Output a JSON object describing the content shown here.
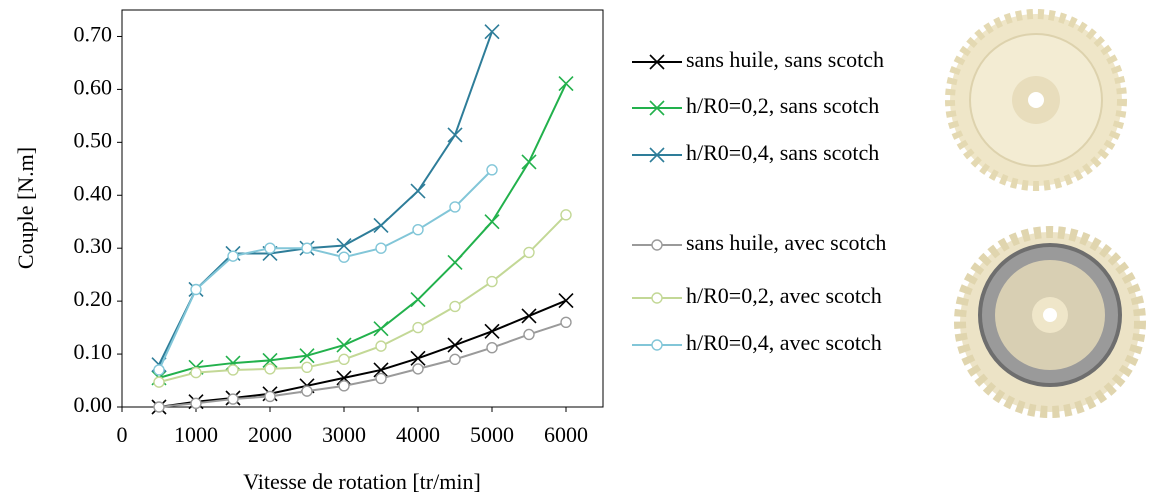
{
  "chart_data": {
    "type": "line",
    "x_label": "Vitesse de rotation [tr/min]",
    "y_label": "Couple [N.m]",
    "x": [
      500,
      1000,
      1500,
      2000,
      2500,
      3000,
      3500,
      4000,
      4500,
      5000,
      5500,
      6000
    ],
    "xlim": [
      0,
      6500
    ],
    "xticks": [
      0,
      1000,
      2000,
      3000,
      4000,
      5000,
      6000
    ],
    "ylim": [
      0,
      0.75
    ],
    "yticks": [
      {
        "value": 0,
        "label": "0.00"
      },
      {
        "value": 0.1,
        "label": "0.10"
      },
      {
        "value": 0.2,
        "label": "0.20"
      },
      {
        "value": 0.3,
        "label": "0.30"
      },
      {
        "value": 0.4,
        "label": "0.40"
      },
      {
        "value": 0.5,
        "label": "0.50"
      },
      {
        "value": 0.6,
        "label": "0.60"
      },
      {
        "value": 0.7,
        "label": "0.70"
      }
    ],
    "grid": false,
    "series": [
      {
        "name": "sans huile, sans scotch",
        "color": "#000000",
        "marker": "x",
        "values": [
          0.0,
          0.01,
          0.017,
          0.025,
          0.04,
          0.055,
          0.07,
          0.092,
          0.117,
          0.143,
          0.172,
          0.201
        ]
      },
      {
        "name": "h/R0=0,2, sans scotch",
        "color": "#22b14c",
        "marker": "x",
        "values": [
          0.055,
          0.075,
          0.083,
          0.088,
          0.097,
          0.117,
          0.148,
          0.203,
          0.273,
          0.35,
          0.463,
          0.611
        ]
      },
      {
        "name": "h/R0=0,4, sans scotch",
        "color": "#2e7d99",
        "marker": "x",
        "values": [
          0.08,
          0.222,
          0.29,
          0.29,
          0.3,
          0.305,
          0.343,
          0.408,
          0.514,
          0.709,
          null,
          null
        ]
      },
      {
        "name": "sans huile, avec scotch",
        "color": "#9a9a9a",
        "marker": "o",
        "values": [
          0.0,
          0.007,
          0.015,
          0.02,
          0.03,
          0.04,
          0.054,
          0.072,
          0.09,
          0.112,
          0.137,
          0.16
        ]
      },
      {
        "name": "h/R0=0,2, avec scotch",
        "color": "#c3d896",
        "marker": "o",
        "values": [
          0.047,
          0.065,
          0.07,
          0.072,
          0.075,
          0.09,
          0.115,
          0.15,
          0.19,
          0.237,
          0.292,
          0.363
        ]
      },
      {
        "name": "h/R0=0,4, avec scotch",
        "color": "#82c6d8",
        "marker": "o",
        "values": [
          0.07,
          0.222,
          0.285,
          0.3,
          0.3,
          0.283,
          0.3,
          0.335,
          0.378,
          0.448,
          null,
          null
        ]
      }
    ]
  }
}
